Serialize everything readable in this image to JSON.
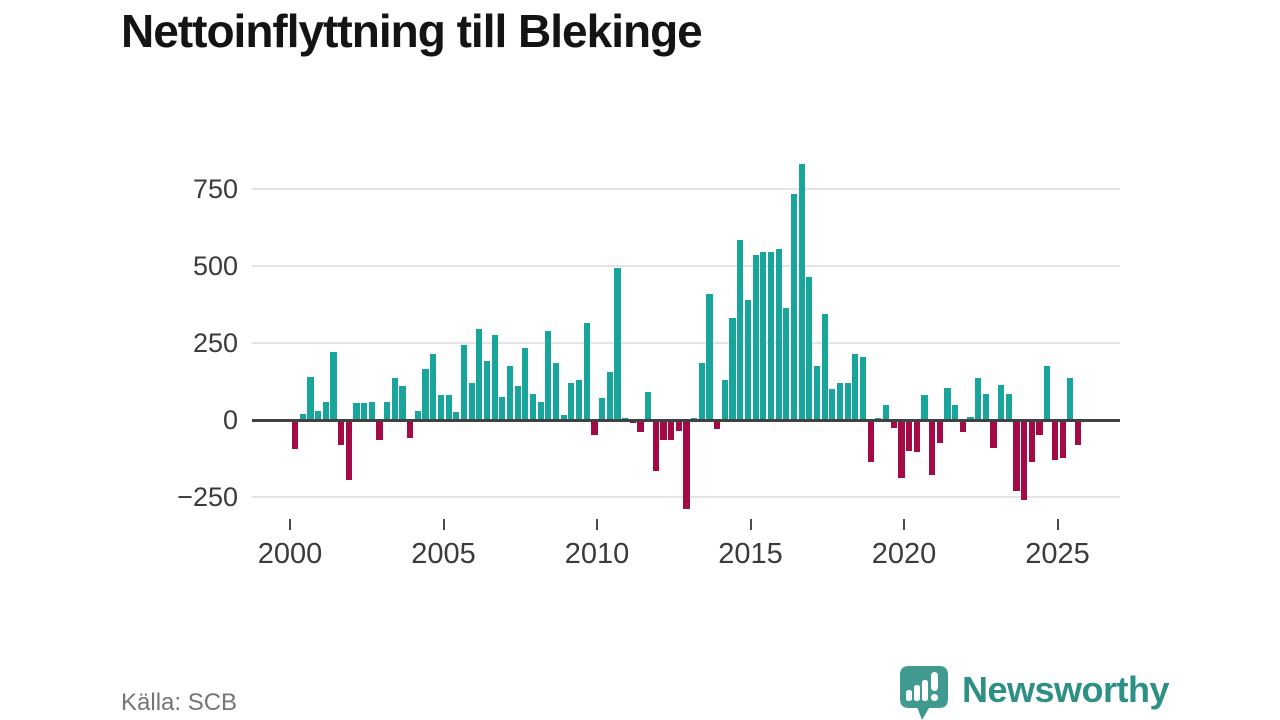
{
  "header": {
    "title": "Nettoinflyttning till Blekinge"
  },
  "footer": {
    "source_label": "Källa: SCB",
    "brand_name": "Newsworthy"
  },
  "colors": {
    "positive": "#18a59c",
    "negative": "#a30a46",
    "grid": "#e4e4e4",
    "axis": "#414141",
    "tick_text": "#3b3b3b",
    "source_text": "#757575",
    "brand_teal": "#2e8f85",
    "logo_bubble": "#419a90"
  },
  "chart_data": {
    "type": "bar",
    "title": "Nettoinflyttning till Blekinge",
    "x_start": "2000Q1",
    "x_end": "2025Q3",
    "frequency": "quarterly",
    "y_ticks": [
      750,
      500,
      250,
      0,
      -250
    ],
    "x_ticks": [
      2000,
      2005,
      2010,
      2015,
      2020,
      2025
    ],
    "ylim": [
      -320,
      880
    ],
    "grid": true,
    "legend": "none",
    "series": [
      {
        "name": "Nettoinflyttning",
        "values": [
          -90,
          20,
          140,
          30,
          60,
          220,
          -75,
          -190,
          55,
          55,
          60,
          -60,
          60,
          135,
          110,
          -55,
          30,
          165,
          215,
          80,
          80,
          25,
          245,
          120,
          295,
          190,
          275,
          75,
          175,
          110,
          235,
          85,
          60,
          290,
          185,
          15,
          120,
          130,
          315,
          -45,
          70,
          155,
          495,
          5,
          -5,
          -35,
          90,
          -160,
          -60,
          -60,
          -30,
          -285,
          5,
          185,
          410,
          -25,
          130,
          330,
          585,
          390,
          535,
          545,
          545,
          555,
          365,
          735,
          830,
          465,
          175,
          345,
          100,
          120,
          120,
          215,
          205,
          -130,
          5,
          50,
          -20,
          -185,
          -95,
          -100,
          80,
          -175,
          -70,
          105,
          50,
          -35,
          10,
          135,
          85,
          -85,
          115,
          85,
          -225,
          -255,
          -130,
          -45,
          175,
          -125,
          -120,
          135,
          -75
        ]
      }
    ]
  }
}
